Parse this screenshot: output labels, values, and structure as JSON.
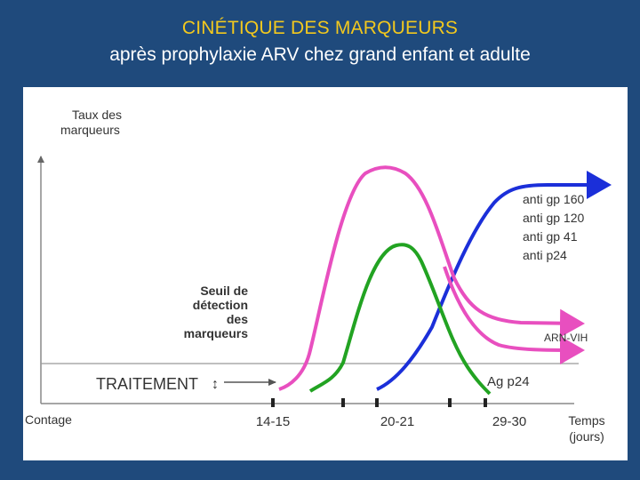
{
  "slide": {
    "title": "CINÉTIQUE DES MARQUEURS",
    "subtitle": "après prophylaxie ARV chez grand enfant et adulte"
  },
  "chart_data": {
    "type": "line",
    "ylabel": [
      "Taux des",
      "marqueurs"
    ],
    "xlabel": [
      "Temps",
      "(jours)"
    ],
    "x_origin_label": "Contage",
    "x_tick_labels": [
      "14-15",
      "20-21",
      "29-30"
    ],
    "threshold_label": [
      "Seuil de",
      "détection",
      "des",
      "marqueurs"
    ],
    "treatment_label": "TRAITEMENT",
    "treatment_symbol": "↕",
    "series_labels": {
      "antibodies": [
        "anti gp 160",
        "anti gp 120",
        "anti gp 41",
        "anti p24"
      ],
      "rna": "ARN-VIH",
      "p24": "Ag p24"
    },
    "colors": {
      "rna": "#e84fbf",
      "p24": "#22a322",
      "antibodies": "#1b2fd9",
      "axis": "#888888",
      "threshold": "#999999"
    }
  }
}
